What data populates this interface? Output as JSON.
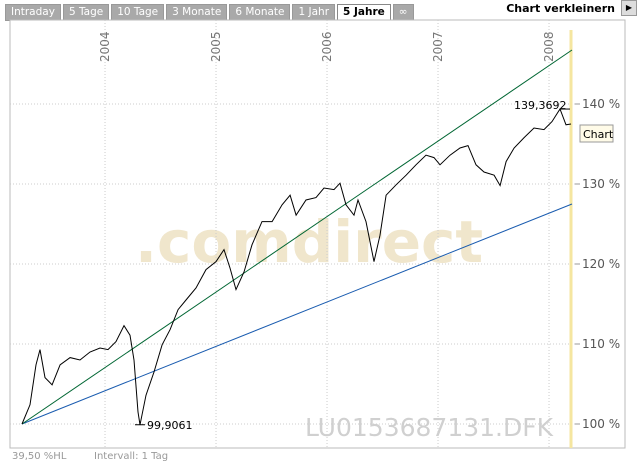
{
  "tabs": [
    "Intraday",
    "5 Tage",
    "10 Tage",
    "3 Monate",
    "6 Monate",
    "1 Jahr",
    "5 Jahre",
    "∞"
  ],
  "active_tab": 6,
  "shrink_button": "Chart verkleinern",
  "chart_data": {
    "type": "line",
    "xlim": [
      2003.144,
      2008.234
    ],
    "ylim": [
      97,
      150.5
    ],
    "xticks": [
      2004,
      2005,
      2006,
      2007,
      2008
    ],
    "yticks": [
      {
        "value": 100,
        "label": "100 %"
      },
      {
        "value": 110,
        "label": "110 %"
      },
      {
        "value": 120,
        "label": "120 %"
      },
      {
        "value": 130,
        "label": "130 %"
      },
      {
        "value": 140,
        "label": "140 %"
      }
    ],
    "grid": true,
    "series": [
      {
        "name": "Chart",
        "color": "#000000",
        "x": [
          2003.252,
          2003.324,
          2003.378,
          2003.414,
          2003.459,
          2003.523,
          2003.595,
          2003.685,
          2003.775,
          2003.865,
          2003.955,
          2004.027,
          2004.099,
          2004.171,
          2004.225,
          2004.261,
          2004.297,
          2004.315,
          2004.369,
          2004.441,
          2004.514,
          2004.586,
          2004.658,
          2004.73,
          2004.82,
          2004.91,
          2005.0,
          2005.072,
          2005.126,
          2005.18,
          2005.252,
          2005.324,
          2005.414,
          2005.505,
          2005.595,
          2005.667,
          2005.721,
          2005.811,
          2005.901,
          2005.973,
          2006.063,
          2006.117,
          2006.171,
          2006.243,
          2006.279,
          2006.351,
          2006.423,
          2006.477,
          2006.532,
          2006.622,
          2006.712,
          2006.802,
          2006.892,
          2006.964,
          2007.018,
          2007.108,
          2007.198,
          2007.27,
          2007.342,
          2007.414,
          2007.505,
          2007.559,
          2007.613,
          2007.685,
          2007.775,
          2007.865,
          2007.955,
          2008.027,
          2008.099,
          2008.153,
          2008.198
        ],
        "values": [
          100,
          102.4,
          107.4,
          109.3,
          105.8,
          104.9,
          107.4,
          108.3,
          108,
          109,
          109.5,
          109.3,
          110.3,
          112.3,
          111.1,
          108,
          101.5,
          99.9061,
          103.6,
          106.5,
          109.9,
          111.8,
          114.3,
          115.5,
          117,
          119.3,
          120.3,
          121.8,
          119.5,
          116.8,
          119,
          122.4,
          125.3,
          125.3,
          127.4,
          128.6,
          126.1,
          128,
          128.3,
          129.5,
          129.3,
          130.1,
          127.4,
          126.1,
          128,
          125.3,
          120.3,
          123.6,
          128.6,
          129.9,
          131.1,
          132.4,
          133.6,
          133.3,
          132.4,
          133.6,
          134.5,
          134.8,
          132.4,
          131.5,
          131.1,
          129.8,
          132.8,
          134.5,
          135.8,
          137,
          136.8,
          137.8,
          139.3692,
          137.4,
          137.5
        ]
      },
      {
        "color": "#006633",
        "x": [
          2003.252,
          2008.207
        ],
        "values": [
          100,
          146.75
        ]
      },
      {
        "color": "#1a5cb0",
        "x": [
          2003.252,
          2008.207
        ],
        "values": [
          100,
          127.5
        ]
      }
    ],
    "annotations": [
      {
        "value": 99.9061,
        "label": "99,9061",
        "x": 2004.315
      },
      {
        "value": 139.3692,
        "label": "139,3692",
        "x": 2008.099
      }
    ],
    "legend": "Chart",
    "watermark": ".comdirect",
    "instrument": "LU0153687131.DFK",
    "footer_left": "39,50 %HL",
    "footer_interval": "Intervall: 1 Tag",
    "current_marker": 2008.198
  }
}
